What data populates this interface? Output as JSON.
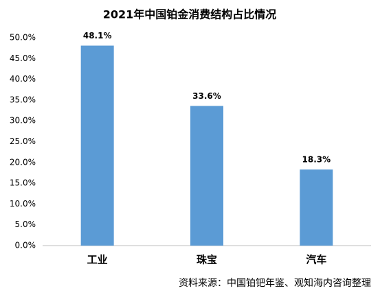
{
  "chart_data": {
    "type": "bar",
    "title": "2021年中国铂金消费结构占比情况",
    "categories": [
      "工业",
      "珠宝",
      "汽车"
    ],
    "values": [
      48.1,
      33.6,
      18.3
    ],
    "value_labels": [
      "48.1%",
      "33.6%",
      "18.3%"
    ],
    "color": "#5b9bd5",
    "ylim": [
      0,
      50
    ],
    "yticks": [
      {
        "value": 0,
        "label": "0.0%"
      },
      {
        "value": 5,
        "label": "5.0%"
      },
      {
        "value": 10,
        "label": "10.0%"
      },
      {
        "value": 15,
        "label": "15.0%"
      },
      {
        "value": 20,
        "label": "20.0%"
      },
      {
        "value": 25,
        "label": "25.0%"
      },
      {
        "value": 30,
        "label": "30.0%"
      },
      {
        "value": 35,
        "label": "35.0%"
      },
      {
        "value": 40,
        "label": "40.0%"
      },
      {
        "value": 45,
        "label": "45.0%"
      },
      {
        "value": 50,
        "label": "50.0%"
      }
    ],
    "grid": false,
    "source": "资料来源：中国铂钯年鉴、观知海内咨询整理"
  }
}
